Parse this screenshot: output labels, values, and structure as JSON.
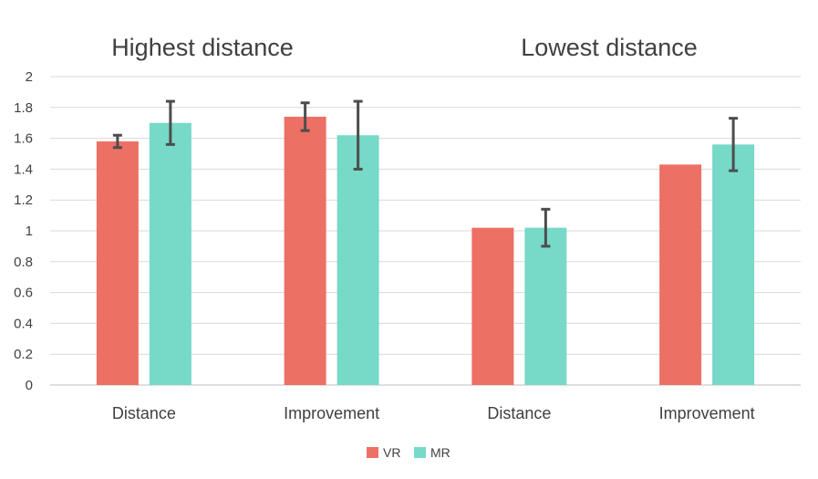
{
  "chart_data": {
    "type": "bar",
    "title": "",
    "group_titles": [
      "Highest distance",
      "Lowest distance"
    ],
    "categories": [
      "Distance",
      "Improvement",
      "Distance",
      "Improvement"
    ],
    "ylim": [
      0,
      2
    ],
    "yticks": [
      "0",
      "0.2",
      "0.4",
      "0.6",
      "0.8",
      "1",
      "1.2",
      "1.4",
      "1.6",
      "1.8",
      "2"
    ],
    "grid": true,
    "legend_position": "bottom",
    "series": [
      {
        "name": "VR",
        "color": "#ed7065",
        "values": [
          1.58,
          1.74,
          1.02,
          1.43
        ],
        "error": [
          0.04,
          0.09,
          null,
          null
        ]
      },
      {
        "name": "MR",
        "color": "#77d9c7",
        "values": [
          1.7,
          1.62,
          1.02,
          1.56
        ],
        "error": [
          0.14,
          0.22,
          0.12,
          0.17
        ]
      }
    ]
  }
}
